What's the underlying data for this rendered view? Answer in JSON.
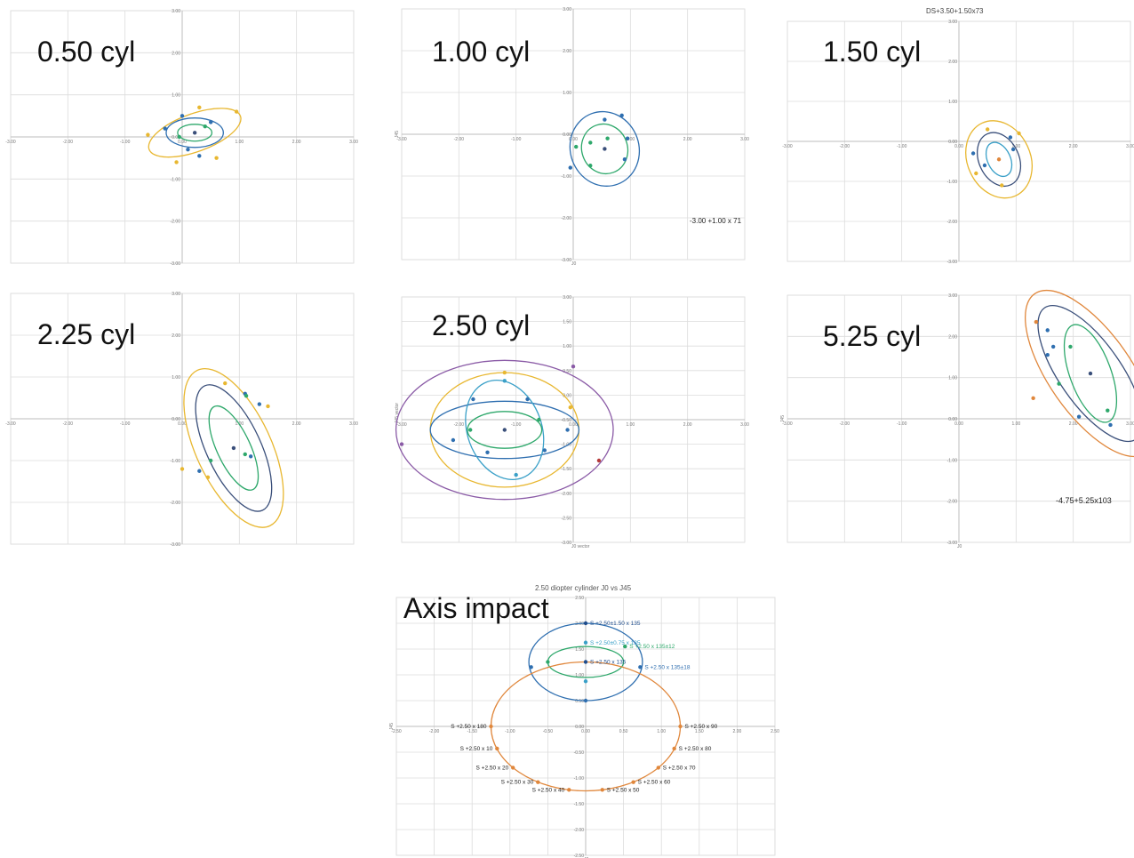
{
  "panels": [
    {
      "id": "p1",
      "label": "0.50 cyl",
      "note": "",
      "top_note": ""
    },
    {
      "id": "p2",
      "label": "1.00 cyl",
      "note": "-3.00 +1.00 x 71",
      "top_note": ""
    },
    {
      "id": "p3",
      "label": "1.50 cyl",
      "note": "",
      "top_note": "DS+3.50+1.50x73"
    },
    {
      "id": "p4",
      "label": "2.25 cyl",
      "note": "",
      "top_note": ""
    },
    {
      "id": "p5",
      "label": "2.50 cyl",
      "note": "",
      "top_note": ""
    },
    {
      "id": "p6",
      "label": "5.25 cyl",
      "note": "-4.75+5.25x103",
      "top_note": ""
    },
    {
      "id": "p7",
      "label": "Axis impact",
      "note": "",
      "top_note": ""
    }
  ],
  "axis_impact_title": "2.50 diopter cylinder J0 vs J45",
  "colors": {
    "grid": "#dcdcdc",
    "axis": "#bdbdbd",
    "yellow": "#e8b730",
    "blue": "#2f6fb0",
    "green": "#2ea86b",
    "teal": "#3aa0c8",
    "navy": "#3a4f7a",
    "orange": "#e0873c",
    "purple": "#8a5aa6",
    "red": "#b53a3a",
    "darkblue": "#1f4d8c"
  },
  "chart_data": [
    {
      "type": "scatter",
      "title": "0.50 cyl",
      "xlim": [
        -3,
        3
      ],
      "ylim": [
        -3,
        3
      ],
      "x_ticks": [
        "-3.00",
        "-2.00",
        "-1.00",
        "0.00",
        "1.00",
        "2.00",
        "3.00"
      ],
      "y_ticks": [
        "3.00",
        "2.00",
        "1.00",
        "0.00",
        "-1.00",
        "-2.00",
        "-3.00"
      ],
      "ellipses": [
        {
          "cx": 0.22,
          "cy": 0.1,
          "rx": 0.85,
          "ry": 0.45,
          "angle": 20,
          "color": "yellow"
        },
        {
          "cx": 0.22,
          "cy": 0.1,
          "rx": 0.5,
          "ry": 0.35,
          "angle": 0,
          "color": "blue"
        },
        {
          "cx": 0.22,
          "cy": 0.1,
          "rx": 0.3,
          "ry": 0.2,
          "angle": 0,
          "color": "green"
        }
      ],
      "points": [
        {
          "x": -0.6,
          "y": 0.05,
          "color": "yellow"
        },
        {
          "x": 0.3,
          "y": 0.7,
          "color": "yellow"
        },
        {
          "x": 0.95,
          "y": 0.6,
          "color": "yellow"
        },
        {
          "x": -0.1,
          "y": -0.6,
          "color": "yellow"
        },
        {
          "x": 0.6,
          "y": -0.5,
          "color": "yellow"
        },
        {
          "x": -0.3,
          "y": 0.2,
          "color": "blue"
        },
        {
          "x": 0.0,
          "y": 0.5,
          "color": "blue"
        },
        {
          "x": 0.5,
          "y": 0.35,
          "color": "blue"
        },
        {
          "x": 0.1,
          "y": -0.3,
          "color": "blue"
        },
        {
          "x": 0.3,
          "y": -0.45,
          "color": "blue"
        },
        {
          "x": 0.4,
          "y": 0.25,
          "color": "green"
        },
        {
          "x": -0.05,
          "y": 0.0,
          "color": "green"
        },
        {
          "x": 0.22,
          "y": 0.1,
          "color": "navy"
        }
      ]
    },
    {
      "type": "scatter",
      "title": "1.00 cyl",
      "xlabel": "J0",
      "ylabel": "J45",
      "xlim": [
        -3,
        3
      ],
      "ylim": [
        -3,
        3
      ],
      "x_ticks": [
        "-3.00",
        "-2.00",
        "-1.00",
        "0.00",
        "1.00",
        "2.00",
        "3.00"
      ],
      "y_ticks": [
        "3.00",
        "2.00",
        "1.00",
        "0.00",
        "-1.00",
        "-2.00",
        "-3.00"
      ],
      "ellipses": [
        {
          "cx": 0.55,
          "cy": -0.35,
          "rx": 0.6,
          "ry": 0.9,
          "angle": 20,
          "color": "blue"
        },
        {
          "cx": 0.55,
          "cy": -0.35,
          "rx": 0.4,
          "ry": 0.6,
          "angle": 20,
          "color": "green"
        }
      ],
      "points": [
        {
          "x": 0.55,
          "y": 0.35,
          "color": "blue"
        },
        {
          "x": 0.85,
          "y": 0.45,
          "color": "blue"
        },
        {
          "x": 0.95,
          "y": -0.1,
          "color": "blue"
        },
        {
          "x": 0.9,
          "y": -0.6,
          "color": "blue"
        },
        {
          "x": -0.05,
          "y": -0.8,
          "color": "blue"
        },
        {
          "x": 0.05,
          "y": -0.3,
          "color": "green"
        },
        {
          "x": 0.3,
          "y": -0.2,
          "color": "green"
        },
        {
          "x": 0.6,
          "y": -0.1,
          "color": "green"
        },
        {
          "x": 0.3,
          "y": -0.75,
          "color": "green"
        },
        {
          "x": 0.55,
          "y": -0.35,
          "color": "navy"
        }
      ]
    },
    {
      "type": "scatter",
      "title": "1.50 cyl",
      "xlim": [
        -3,
        3
      ],
      "ylim": [
        -3,
        3
      ],
      "x_ticks": [
        "-3.00",
        "-2.00",
        "-1.00",
        "0.00",
        "1.00",
        "2.00",
        "3.00"
      ],
      "y_ticks": [
        "3.00",
        "2.00",
        "1.00",
        "0.00",
        "-1.00",
        "-2.00",
        "-3.00"
      ],
      "ellipses": [
        {
          "cx": 0.7,
          "cy": -0.45,
          "rx": 0.55,
          "ry": 1.0,
          "angle": 25,
          "color": "yellow"
        },
        {
          "cx": 0.7,
          "cy": -0.45,
          "rx": 0.35,
          "ry": 0.7,
          "angle": 25,
          "color": "navy"
        },
        {
          "cx": 0.7,
          "cy": -0.45,
          "rx": 0.2,
          "ry": 0.45,
          "angle": 25,
          "color": "teal"
        }
      ],
      "points": [
        {
          "x": 0.3,
          "y": -0.8,
          "color": "yellow"
        },
        {
          "x": 0.5,
          "y": 0.3,
          "color": "yellow"
        },
        {
          "x": 1.05,
          "y": 0.2,
          "color": "yellow"
        },
        {
          "x": 0.75,
          "y": -1.1,
          "color": "yellow"
        },
        {
          "x": 0.25,
          "y": -0.3,
          "color": "blue"
        },
        {
          "x": 0.9,
          "y": 0.1,
          "color": "blue"
        },
        {
          "x": 0.95,
          "y": -0.2,
          "color": "blue"
        },
        {
          "x": 0.45,
          "y": -0.6,
          "color": "blue"
        },
        {
          "x": 0.7,
          "y": -0.45,
          "color": "orange"
        }
      ]
    },
    {
      "type": "scatter",
      "title": "2.25 cyl",
      "xlim": [
        -3,
        3
      ],
      "ylim": [
        -3,
        3
      ],
      "x_ticks": [
        "-3.00",
        "-2.00",
        "-1.00",
        "0.00",
        "1.00",
        "2.00",
        "3.00"
      ],
      "y_ticks": [
        "3.00",
        "2.00",
        "1.00",
        "0.00",
        "-1.00",
        "-2.00",
        "-3.00"
      ],
      "ellipses": [
        {
          "cx": 0.9,
          "cy": -0.7,
          "rx": 1.5,
          "ry": 0.9,
          "angle": 115,
          "color": "yellow"
        },
        {
          "cx": 0.9,
          "cy": -0.7,
          "rx": 1.2,
          "ry": 0.65,
          "angle": 115,
          "color": "navy"
        },
        {
          "cx": 0.9,
          "cy": -0.7,
          "rx": 0.8,
          "ry": 0.4,
          "angle": 115,
          "color": "green"
        }
      ],
      "points": [
        {
          "x": 0.75,
          "y": 0.85,
          "color": "yellow"
        },
        {
          "x": 1.5,
          "y": 0.3,
          "color": "yellow"
        },
        {
          "x": 0.0,
          "y": -1.2,
          "color": "yellow"
        },
        {
          "x": 0.45,
          "y": -1.4,
          "color": "yellow"
        },
        {
          "x": 1.1,
          "y": 0.6,
          "color": "blue"
        },
        {
          "x": 1.35,
          "y": 0.35,
          "color": "blue"
        },
        {
          "x": 1.2,
          "y": -0.9,
          "color": "blue"
        },
        {
          "x": 0.3,
          "y": -1.25,
          "color": "blue"
        },
        {
          "x": 0.5,
          "y": -1.0,
          "color": "green"
        },
        {
          "x": 1.1,
          "y": -0.85,
          "color": "green"
        },
        {
          "x": 1.12,
          "y": 0.55,
          "color": "green"
        },
        {
          "x": 0.9,
          "y": -0.7,
          "color": "navy"
        }
      ]
    },
    {
      "type": "scatter",
      "title": "2.50 cyl",
      "xlabel": "J0 vector",
      "ylabel": "J45 vector",
      "xlim": [
        -3,
        3
      ],
      "ylim": [
        -3,
        3
      ],
      "x_ticks": [
        "-3.00",
        "-2.00",
        "-1.00",
        "0.00",
        "1.00",
        "2.00",
        "3.00"
      ],
      "y_ticks": [
        "3.00",
        "1.50",
        "1.00",
        "0.50",
        "0.00",
        "-0.50",
        "-1.00",
        "-1.50",
        "-2.00",
        "-2.50",
        "-3.00"
      ],
      "ellipses": [
        {
          "cx": -1.2,
          "cy": -0.25,
          "rx": 1.9,
          "ry": 1.7,
          "angle": 0,
          "color": "purple"
        },
        {
          "cx": -1.2,
          "cy": -0.25,
          "rx": 1.3,
          "ry": 1.4,
          "angle": 0,
          "color": "yellow"
        },
        {
          "cx": -1.2,
          "cy": -0.25,
          "rx": 1.3,
          "ry": 0.7,
          "angle": 0,
          "color": "blue"
        },
        {
          "cx": -1.2,
          "cy": -0.25,
          "rx": 0.65,
          "ry": 1.25,
          "angle": 20,
          "color": "teal"
        },
        {
          "cx": -1.2,
          "cy": -0.25,
          "rx": 0.65,
          "ry": 0.45,
          "angle": 0,
          "color": "green"
        }
      ],
      "points": [
        {
          "x": -3.0,
          "y": -0.6,
          "color": "purple"
        },
        {
          "x": 0.0,
          "y": 1.3,
          "color": "purple"
        },
        {
          "x": 0.45,
          "y": -1.0,
          "color": "red"
        },
        {
          "x": -1.2,
          "y": 1.15,
          "color": "yellow"
        },
        {
          "x": -0.05,
          "y": 0.3,
          "color": "yellow"
        },
        {
          "x": -2.1,
          "y": -0.5,
          "color": "blue"
        },
        {
          "x": -1.75,
          "y": 0.5,
          "color": "blue"
        },
        {
          "x": -0.8,
          "y": 0.5,
          "color": "blue"
        },
        {
          "x": -0.1,
          "y": -0.25,
          "color": "blue"
        },
        {
          "x": -0.5,
          "y": -0.75,
          "color": "blue"
        },
        {
          "x": -1.5,
          "y": -0.8,
          "color": "blue"
        },
        {
          "x": -1.2,
          "y": 0.95,
          "color": "teal"
        },
        {
          "x": -1.0,
          "y": -1.35,
          "color": "teal"
        },
        {
          "x": -0.6,
          "y": 0.0,
          "color": "green"
        },
        {
          "x": -1.8,
          "y": -0.25,
          "color": "green"
        },
        {
          "x": -1.2,
          "y": -0.25,
          "color": "navy"
        }
      ]
    },
    {
      "type": "scatter",
      "title": "5.25 cyl",
      "xlabel": "J0",
      "ylabel": "J45",
      "xlim": [
        -3,
        3
      ],
      "ylim": [
        -3,
        3
      ],
      "x_ticks": [
        "-3.00",
        "-2.00",
        "-1.00",
        "0.00",
        "1.00",
        "2.00",
        "3.00"
      ],
      "y_ticks": [
        "3.00",
        "2.00",
        "1.00",
        "0.00",
        "-1.00",
        "-2.00",
        "-3.00"
      ],
      "ellipses": [
        {
          "cx": 2.3,
          "cy": 1.1,
          "rx": 1.7,
          "ry": 1.0,
          "angle": -55,
          "color": "orange"
        },
        {
          "cx": 2.3,
          "cy": 1.1,
          "rx": 1.4,
          "ry": 0.75,
          "angle": -55,
          "color": "navy"
        },
        {
          "cx": 2.3,
          "cy": 1.1,
          "rx": 0.9,
          "ry": 0.5,
          "angle": -70,
          "color": "green"
        }
      ],
      "points": [
        {
          "x": 1.35,
          "y": 2.35,
          "color": "orange"
        },
        {
          "x": 1.3,
          "y": 0.5,
          "color": "orange"
        },
        {
          "x": 1.55,
          "y": 2.15,
          "color": "blue"
        },
        {
          "x": 1.55,
          "y": 1.55,
          "color": "blue"
        },
        {
          "x": 1.65,
          "y": 1.75,
          "color": "blue"
        },
        {
          "x": 2.65,
          "y": -0.15,
          "color": "blue"
        },
        {
          "x": 2.1,
          "y": 0.05,
          "color": "blue"
        },
        {
          "x": 1.75,
          "y": 0.85,
          "color": "green"
        },
        {
          "x": 1.95,
          "y": 1.75,
          "color": "green"
        },
        {
          "x": 2.6,
          "y": 0.2,
          "color": "green"
        },
        {
          "x": 2.3,
          "y": 1.1,
          "color": "navy"
        }
      ]
    },
    {
      "type": "scatter",
      "title": "2.50 diopter cylinder J0 vs J45",
      "xlabel": "J0",
      "ylabel": "J45",
      "xlim": [
        -2.5,
        2.5
      ],
      "ylim": [
        -2.5,
        2.5
      ],
      "x_ticks": [
        "-2.50",
        "-2.00",
        "-1.50",
        "-1.00",
        "-0.50",
        "0.00",
        "0.50",
        "1.00",
        "1.50",
        "2.00",
        "2.50"
      ],
      "y_ticks": [
        "2.50",
        "2.00",
        "1.50",
        "1.00",
        "0.50",
        "0.00",
        "-0.50",
        "-1.00",
        "-1.50",
        "-2.00",
        "-2.50"
      ],
      "ellipses": [
        {
          "cx": 0.0,
          "cy": 1.25,
          "rx": 0.75,
          "ry": 0.75,
          "angle": 0,
          "color": "blue"
        },
        {
          "cx": 0.0,
          "cy": 1.25,
          "rx": 0.5,
          "ry": 0.3,
          "angle": 0,
          "color": "green"
        },
        {
          "cx": 0.0,
          "cy": 0.0,
          "rx": 1.25,
          "ry": 1.25,
          "angle": 0,
          "color": "orange"
        }
      ],
      "points": [
        {
          "x": 0.0,
          "y": 2.0,
          "color": "darkblue",
          "label": "S +2.50±1.50 x 135"
        },
        {
          "x": 0.0,
          "y": 1.625,
          "color": "teal",
          "label": "S +2.50±0.75 x 135"
        },
        {
          "x": 0.52,
          "y": 1.55,
          "color": "green",
          "label": "S +2.50 x 135±12"
        },
        {
          "x": 0.72,
          "y": 1.15,
          "color": "blue",
          "label": "S +2.50 x 135±18"
        },
        {
          "x": 0.0,
          "y": 1.25,
          "color": "darkblue",
          "label": "S +2.50 x 135"
        },
        {
          "x": 0.0,
          "y": 0.875,
          "color": "teal",
          "label": ""
        },
        {
          "x": 0.0,
          "y": 0.5,
          "color": "blue",
          "label": ""
        },
        {
          "x": -0.72,
          "y": 1.15,
          "color": "blue",
          "label": ""
        },
        {
          "x": -0.5,
          "y": 1.25,
          "color": "green",
          "label": ""
        },
        {
          "x": -1.25,
          "y": 0.0,
          "color": "orange",
          "label": "S +2.50 x 180"
        },
        {
          "x": 1.25,
          "y": 0.0,
          "color": "orange",
          "label": "S +2.50 x 90"
        },
        {
          "x": -1.17,
          "y": -0.43,
          "color": "orange",
          "label": "S +2.50 x 10"
        },
        {
          "x": 1.17,
          "y": -0.43,
          "color": "orange",
          "label": "S +2.50 x 80"
        },
        {
          "x": -0.96,
          "y": -0.8,
          "color": "orange",
          "label": "S +2.50 x 20"
        },
        {
          "x": 0.96,
          "y": -0.8,
          "color": "orange",
          "label": "S +2.50 x 70"
        },
        {
          "x": -0.63,
          "y": -1.08,
          "color": "orange",
          "label": "S +2.50 x 30"
        },
        {
          "x": 0.63,
          "y": -1.08,
          "color": "orange",
          "label": "S +2.50 x 60"
        },
        {
          "x": -0.22,
          "y": -1.23,
          "color": "orange",
          "label": "S +2.50 x 40"
        },
        {
          "x": 0.22,
          "y": -1.23,
          "color": "orange",
          "label": "S +2.50 x 50"
        }
      ]
    }
  ]
}
